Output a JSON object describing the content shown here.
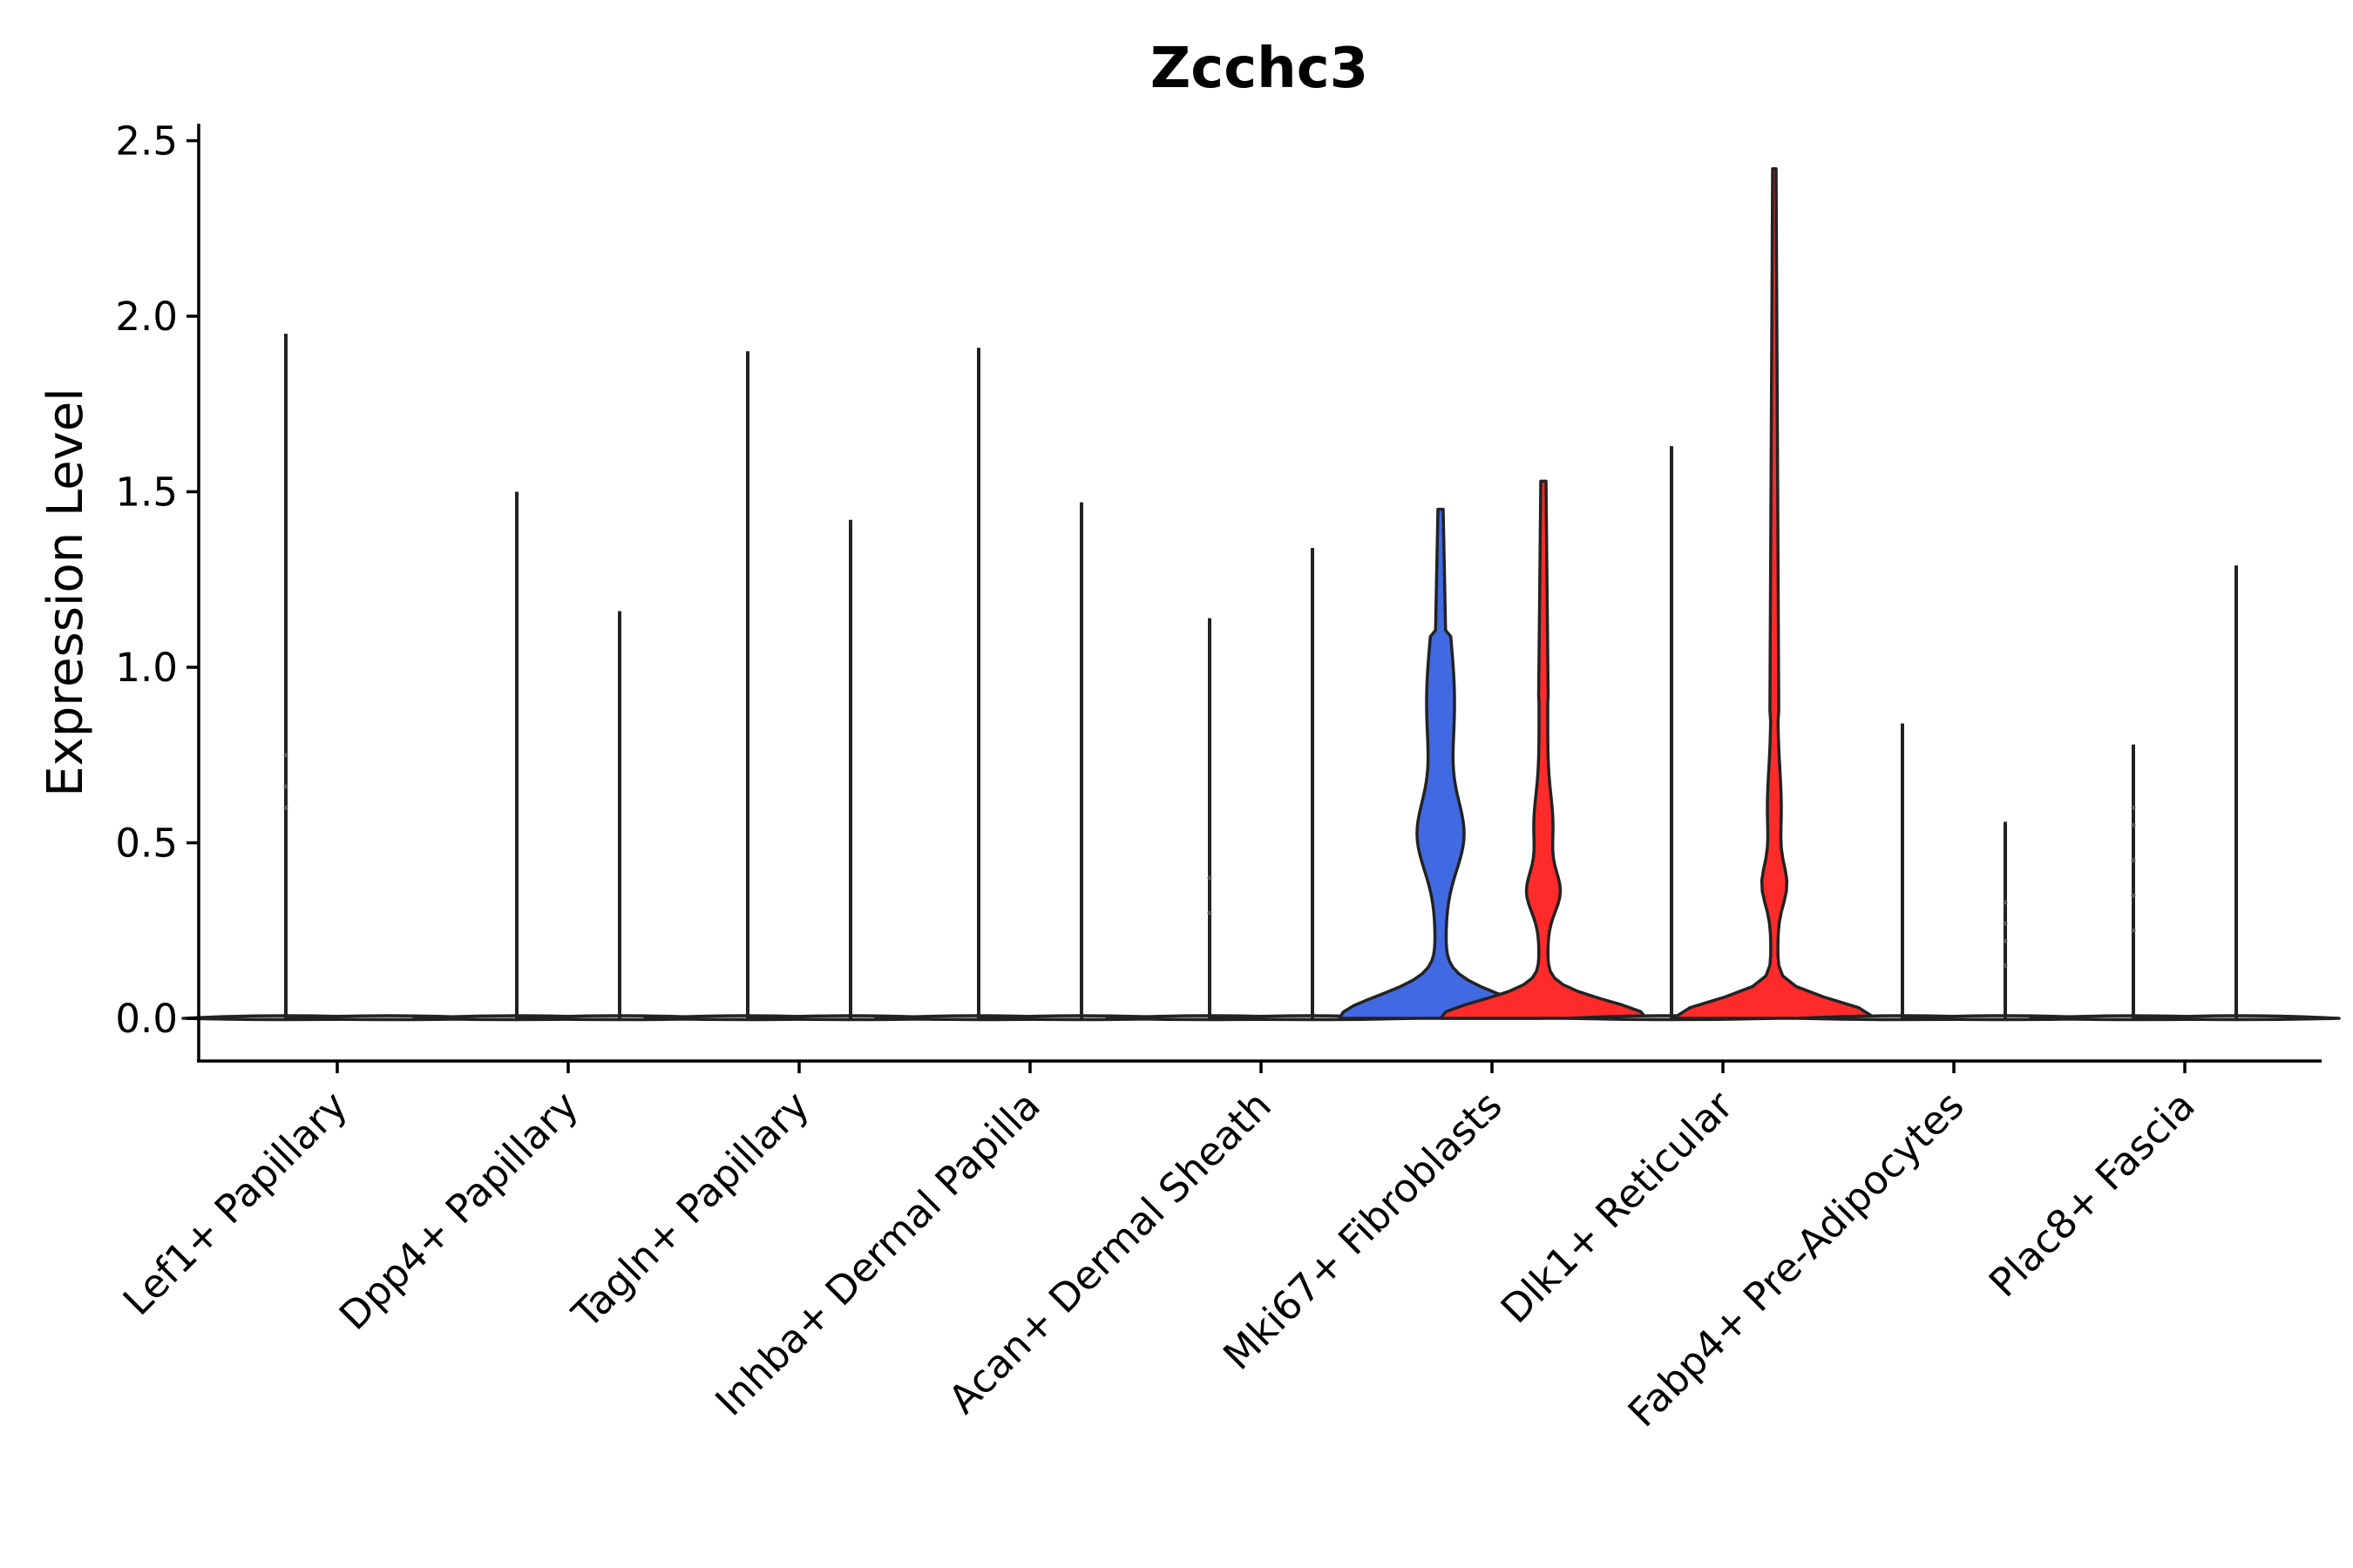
{
  "chart_data": {
    "type": "violin",
    "title": "Zcchc3",
    "ylabel": "Expression Level",
    "xlabel": "",
    "ylim": [
      -0.12,
      2.55
    ],
    "yticks": [
      "0.0",
      "0.5",
      "1.0",
      "1.5",
      "2.0",
      "2.5"
    ],
    "ytick_values": [
      0.0,
      0.5,
      1.0,
      1.5,
      2.0,
      2.5
    ],
    "categories": [
      "Lef1+ Papillary",
      "Dpp4+ Papillary",
      "Tagln+ Papillary",
      "Inhba+ Dermal Papilla",
      "Acan+ Dermal Sheath",
      "Mki67+ Fibroblasts",
      "Dlk1+ Reticular",
      "Fabp4+ Pre-Adipocytes",
      "Plac8+ Fascia"
    ],
    "groups": [
      {
        "category": "Lef1+ Papillary",
        "max_values": [
          1.95,
          0.0
        ],
        "colors": [
          "#cccccc",
          "#cccccc"
        ]
      },
      {
        "category": "Dpp4+ Papillary",
        "max_values": [
          1.5,
          1.16
        ],
        "colors": [
          "#cccccc",
          "#cccccc"
        ]
      },
      {
        "category": "Tagln+ Papillary",
        "max_values": [
          1.9,
          1.42
        ],
        "colors": [
          "#cccccc",
          "#cccccc"
        ]
      },
      {
        "category": "Inhba+ Dermal Papilla",
        "max_values": [
          1.91,
          1.47
        ],
        "colors": [
          "#cccccc",
          "#cccccc"
        ]
      },
      {
        "category": "Acan+ Dermal Sheath",
        "max_values": [
          1.14,
          1.34
        ],
        "colors": [
          "#cccccc",
          "#cccccc"
        ]
      },
      {
        "category": "Mki67+ Fibroblasts",
        "max_values": [
          1.45,
          1.53
        ],
        "colors": [
          "#4169e1",
          "#ff2a2a"
        ]
      },
      {
        "category": "Dlk1+ Reticular",
        "max_values": [
          1.63,
          2.42
        ],
        "colors": [
          "#cccccc",
          "#ff2a2a"
        ]
      },
      {
        "category": "Fabp4+ Pre-Adipocytes",
        "max_values": [
          0.84,
          0.56
        ],
        "colors": [
          "#cccccc",
          "#cccccc"
        ]
      },
      {
        "category": "Plac8+ Fascia",
        "max_values": [
          0.78,
          1.29
        ],
        "colors": [
          "#cccccc",
          "#cccccc"
        ]
      }
    ],
    "grid": false,
    "legend": "none"
  }
}
